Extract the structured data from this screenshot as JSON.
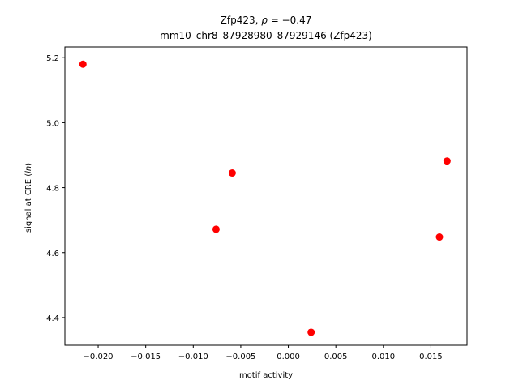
{
  "chart_data": {
    "type": "scatter",
    "title_line1": "Zfp423, ρ = −0.47",
    "title_line2": "mm10_chr8_87928980_87929146 (Zfp423)",
    "xlabel": "motif activity",
    "ylabel": "signal at CRE (ln)",
    "xlim": [
      -0.0235,
      0.0188
    ],
    "ylim": [
      4.315,
      5.233
    ],
    "xticks": [
      -0.02,
      -0.015,
      -0.01,
      -0.005,
      0.0,
      0.005,
      0.01,
      0.015
    ],
    "xtick_labels": [
      "−0.020",
      "−0.015",
      "−0.010",
      "−0.005",
      "0.000",
      "0.005",
      "0.010",
      "0.015"
    ],
    "yticks": [
      4.4,
      4.6,
      4.8,
      5.0,
      5.2
    ],
    "ytick_labels": [
      "4.4",
      "4.6",
      "4.8",
      "5.0",
      "5.2"
    ],
    "grid": false,
    "marker_color": "#ff0000",
    "x": [
      -0.0216,
      -0.0059,
      -0.0076,
      0.0024,
      0.0159,
      0.0167
    ],
    "y": [
      5.18,
      4.845,
      4.672,
      4.355,
      4.648,
      4.882
    ]
  }
}
